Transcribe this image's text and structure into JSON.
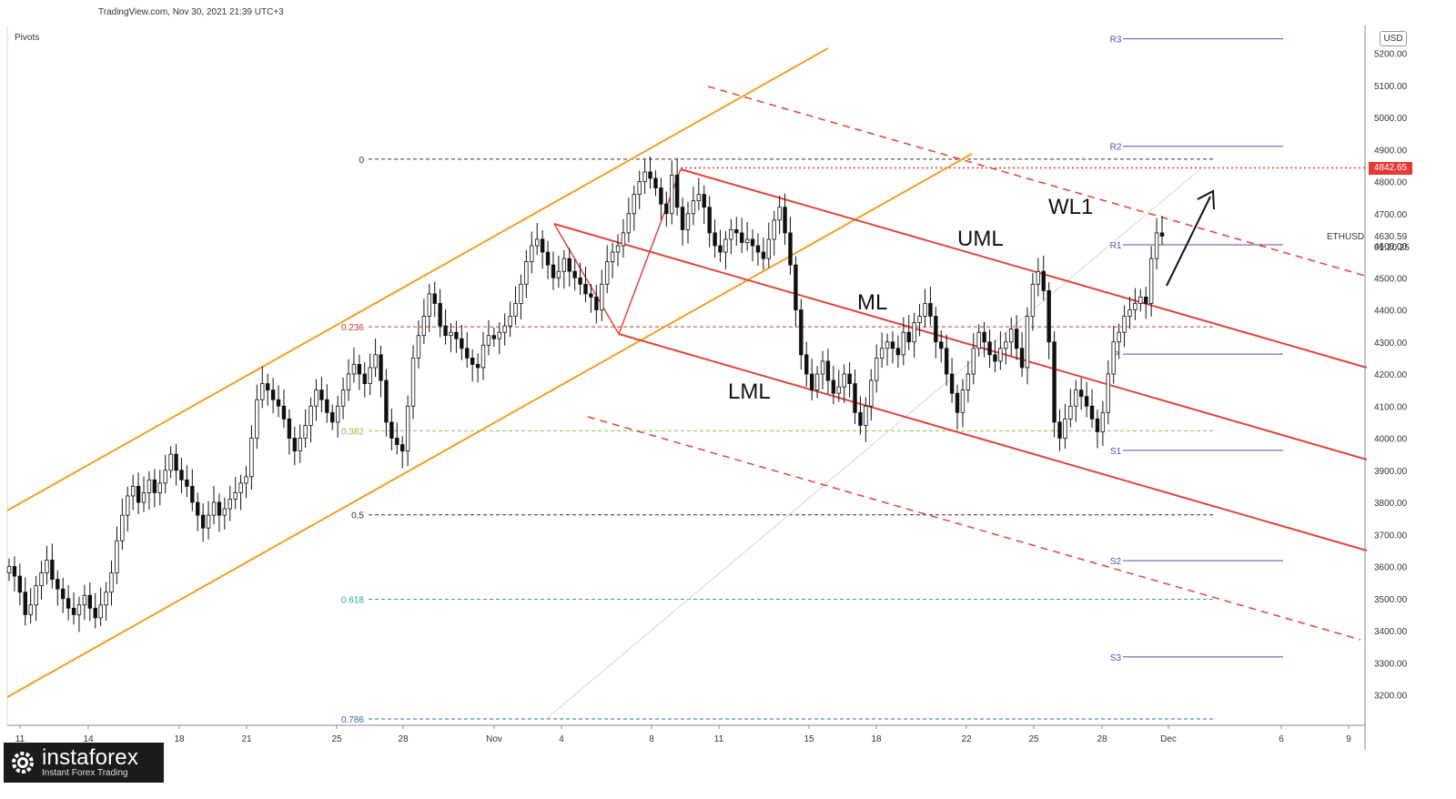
{
  "header": {
    "source": "TradingView.com, Nov 30, 2021 21:39 UTC+3",
    "indicator": "Pivots"
  },
  "chart_data": {
    "type": "candlestick",
    "symbol": "ETHUSD",
    "currency": "USD",
    "last_price": "4630.59",
    "countdown": "01:20:25",
    "marked_level": "4842.65",
    "y_ticks": [
      "5200.00",
      "5100.00",
      "5000.00",
      "4900.00",
      "4800.00",
      "4700.00",
      "4600.00",
      "4500.00",
      "4400.00",
      "4300.00",
      "4200.00",
      "4100.00",
      "4000.00",
      "3900.00",
      "3800.00",
      "3700.00",
      "3600.00",
      "3500.00",
      "3400.00",
      "3300.00",
      "3200.00"
    ],
    "x_ticks": [
      "11",
      "14",
      "18",
      "21",
      "25",
      "28",
      "Nov",
      "4",
      "8",
      "11",
      "15",
      "18",
      "22",
      "25",
      "28",
      "Dec",
      "6",
      "9"
    ],
    "fib_levels": [
      {
        "label": "0",
        "price": 4870,
        "color": "#333333"
      },
      {
        "label": "0.236",
        "price": 4347,
        "color": "#c0392b"
      },
      {
        "label": "0.382",
        "price": 4023,
        "color": "#8bc34a"
      },
      {
        "label": "0.5",
        "price": 3761,
        "color": "#333333"
      },
      {
        "label": "0.618",
        "price": 3498,
        "color": "#26a69a"
      },
      {
        "label": "0.786",
        "price": 3125,
        "color": "#1e6fa5"
      }
    ],
    "pivots": [
      {
        "label": "R3",
        "price": 5245
      },
      {
        "label": "R2",
        "price": 4910
      },
      {
        "label": "R1",
        "price": 4603
      },
      {
        "label": "P",
        "price": 4262
      },
      {
        "label": "S1",
        "price": 3962
      },
      {
        "label": "S2",
        "price": 3618
      },
      {
        "label": "S3",
        "price": 3318
      }
    ],
    "annotations": [
      "UML",
      "ML",
      "LML",
      "WL1"
    ],
    "series_close": [
      3600,
      3570,
      3520,
      3450,
      3480,
      3540,
      3580,
      3620,
      3560,
      3530,
      3500,
      3470,
      3450,
      3480,
      3510,
      3470,
      3440,
      3480,
      3520,
      3580,
      3680,
      3760,
      3820,
      3850,
      3800,
      3830,
      3870,
      3830,
      3860,
      3900,
      3950,
      3900,
      3870,
      3850,
      3800,
      3760,
      3720,
      3760,
      3800,
      3760,
      3780,
      3810,
      3830,
      3860,
      3880,
      4000,
      4120,
      4170,
      4150,
      4120,
      4100,
      4060,
      4000,
      3960,
      4000,
      4040,
      4100,
      4150,
      4120,
      4080,
      4050,
      4100,
      4150,
      4200,
      4230,
      4200,
      4170,
      4220,
      4260,
      4180,
      4050,
      4000,
      3980,
      3960,
      4100,
      4250,
      4320,
      4380,
      4450,
      4420,
      4350,
      4320,
      4330,
      4310,
      4280,
      4250,
      4230,
      4220,
      4290,
      4320,
      4310,
      4330,
      4350,
      4380,
      4420,
      4480,
      4550,
      4600,
      4620,
      4580,
      4540,
      4500,
      4520,
      4560,
      4520,
      4500,
      4480,
      4450,
      4440,
      4400,
      4480,
      4550,
      4580,
      4600,
      4640,
      4700,
      4760,
      4800,
      4830,
      4810,
      4780,
      4730,
      4700,
      4820,
      4720,
      4650,
      4700,
      4740,
      4760,
      4720,
      4640,
      4600,
      4580,
      4620,
      4650,
      4640,
      4610,
      4620,
      4600,
      4580,
      4560,
      4620,
      4680,
      4720,
      4640,
      4540,
      4400,
      4260,
      4200,
      4150,
      4200,
      4240,
      4180,
      4140,
      4160,
      4200,
      4170,
      4080,
      4040,
      4100,
      4180,
      4250,
      4280,
      4300,
      4280,
      4260,
      4330,
      4300,
      4360,
      4380,
      4420,
      4380,
      4300,
      4280,
      4200,
      4140,
      4080,
      4150,
      4200,
      4280,
      4330,
      4300,
      4260,
      4240,
      4280,
      4300,
      4340,
      4280,
      4220,
      4380,
      4480,
      4520,
      4460,
      4300,
      4050,
      4000,
      4060,
      4100,
      4150,
      4130,
      4100,
      4060,
      4020,
      4080,
      4200,
      4300,
      4330,
      4380,
      4400,
      4420,
      4440,
      4420,
      4560,
      4640,
      4630
    ]
  }
}
